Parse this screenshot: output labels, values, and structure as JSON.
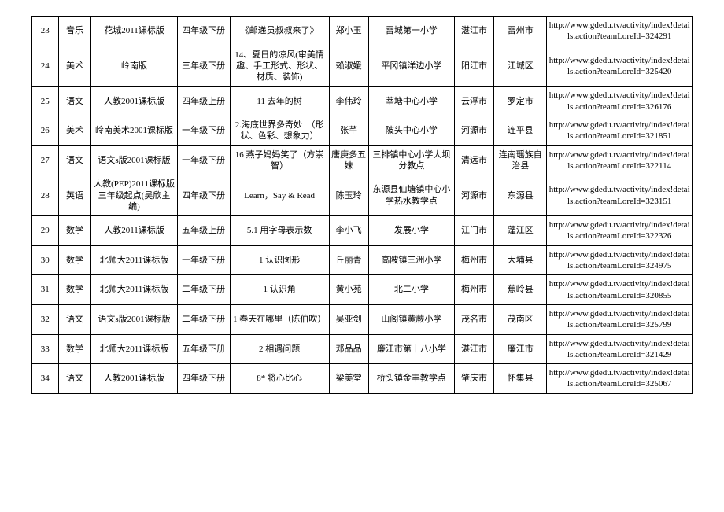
{
  "table": {
    "columns": [
      {
        "key": "num",
        "class": "col-num"
      },
      {
        "key": "subject",
        "class": "col-subject"
      },
      {
        "key": "version",
        "class": "col-version"
      },
      {
        "key": "grade",
        "class": "col-grade"
      },
      {
        "key": "lesson",
        "class": "col-lesson"
      },
      {
        "key": "teacher",
        "class": "col-teacher"
      },
      {
        "key": "school",
        "class": "col-school"
      },
      {
        "key": "city",
        "class": "col-city"
      },
      {
        "key": "district",
        "class": "col-district"
      },
      {
        "key": "url",
        "class": "col-url"
      }
    ],
    "rows": [
      {
        "num": "23",
        "subject": "音乐",
        "version": "花城2011课标版",
        "grade": "四年级下册",
        "lesson": "《邮递员叔叔来了》",
        "teacher": "郑小玉",
        "school": "雷城第一小学",
        "city": "湛江市",
        "district": "雷州市",
        "url": "http://www.gdedu.tv/activity/index!details.action?teamLoreId=324291"
      },
      {
        "num": "24",
        "subject": "美术",
        "version": "岭南版",
        "grade": "三年级下册",
        "lesson": "14、夏日的凉风(审美情趣、手工形式、形状、材质、装饰)",
        "teacher": "赖淑媛",
        "school": "平冈镇洋边小学",
        "city": "阳江市",
        "district": "江城区",
        "url": "http://www.gdedu.tv/activity/index!details.action?teamLoreId=325420"
      },
      {
        "num": "25",
        "subject": "语文",
        "version": "人教2001课标版",
        "grade": "四年级上册",
        "lesson": "11 去年的树",
        "teacher": "李伟玲",
        "school": "莘塘中心小学",
        "city": "云浮市",
        "district": "罗定市",
        "url": "http://www.gdedu.tv/activity/index!details.action?teamLoreId=326176"
      },
      {
        "num": "26",
        "subject": "美术",
        "version": "岭南美术2001课标版",
        "grade": "一年级下册",
        "lesson": "2.海底世界多奇妙　（形状、色彩、想象力）",
        "teacher": "张芊",
        "school": "陂头中心小学",
        "city": "河源市",
        "district": "连平县",
        "url": "http://www.gdedu.tv/activity/index!details.action?teamLoreId=321851"
      },
      {
        "num": "27",
        "subject": "语文",
        "version": "语文s版2001课标版",
        "grade": "一年级下册",
        "lesson": "16 燕子妈妈笑了（方崇智）",
        "teacher": "唐庚多五妹",
        "school": "三排镇中心小学大坝分教点",
        "city": "清远市",
        "district": "连南瑶族自治县",
        "url": "http://www.gdedu.tv/activity/index!details.action?teamLoreId=322114"
      },
      {
        "num": "28",
        "subject": "英语",
        "version": "人教(PEP)2011课标版三年级起点(吴欣主编)",
        "grade": "四年级下册",
        "lesson": "Learn，Say & Read",
        "teacher": "陈玉玲",
        "school": "东源县仙塘镇中心小学热水教学点",
        "city": "河源市",
        "district": "东源县",
        "url": "http://www.gdedu.tv/activity/index!details.action?teamLoreId=323151"
      },
      {
        "num": "29",
        "subject": "数学",
        "version": "人教2011课标版",
        "grade": "五年级上册",
        "lesson": "5.1 用字母表示数",
        "teacher": "李小飞",
        "school": "发展小学",
        "city": "江门市",
        "district": "蓬江区",
        "url": "http://www.gdedu.tv/activity/index!details.action?teamLoreId=322326"
      },
      {
        "num": "30",
        "subject": "数学",
        "version": "北师大2011课标版",
        "grade": "一年级下册",
        "lesson": "1 认识图形",
        "teacher": "丘丽青",
        "school": "高陂镇三洲小学",
        "city": "梅州市",
        "district": "大埔县",
        "url": "http://www.gdedu.tv/activity/index!details.action?teamLoreId=324975"
      },
      {
        "num": "31",
        "subject": "数学",
        "version": "北师大2011课标版",
        "grade": "二年级下册",
        "lesson": "1 认识角",
        "teacher": "黄小苑",
        "school": "北二小学",
        "city": "梅州市",
        "district": "蕉岭县",
        "url": "http://www.gdedu.tv/activity/index!details.action?teamLoreId=320855"
      },
      {
        "num": "32",
        "subject": "语文",
        "version": "语文s版2001课标版",
        "grade": "二年级下册",
        "lesson": "1 春天在哪里（陈伯吹）",
        "teacher": "吴亚剑",
        "school": "山阁镇黄蕨小学",
        "city": "茂名市",
        "district": "茂南区",
        "url": "http://www.gdedu.tv/activity/index!details.action?teamLoreId=325799"
      },
      {
        "num": "33",
        "subject": "数学",
        "version": "北师大2011课标版",
        "grade": "五年级下册",
        "lesson": "2 相遇问题",
        "teacher": "邓品品",
        "school": "廉江市第十八小学",
        "city": "湛江市",
        "district": "廉江市",
        "url": "http://www.gdedu.tv/activity/index!details.action?teamLoreId=321429"
      },
      {
        "num": "34",
        "subject": "语文",
        "version": "人教2001课标版",
        "grade": "四年级下册",
        "lesson": "8* 将心比心",
        "teacher": "梁美堂",
        "school": "桥头镇金丰教学点",
        "city": "肇庆市",
        "district": "怀集县",
        "url": "http://www.gdedu.tv/activity/index!details.action?teamLoreId=325067"
      }
    ]
  },
  "style": {
    "border_color": "#000000",
    "background_color": "#ffffff",
    "font_family": "SimSun",
    "cell_fontsize": 11
  }
}
